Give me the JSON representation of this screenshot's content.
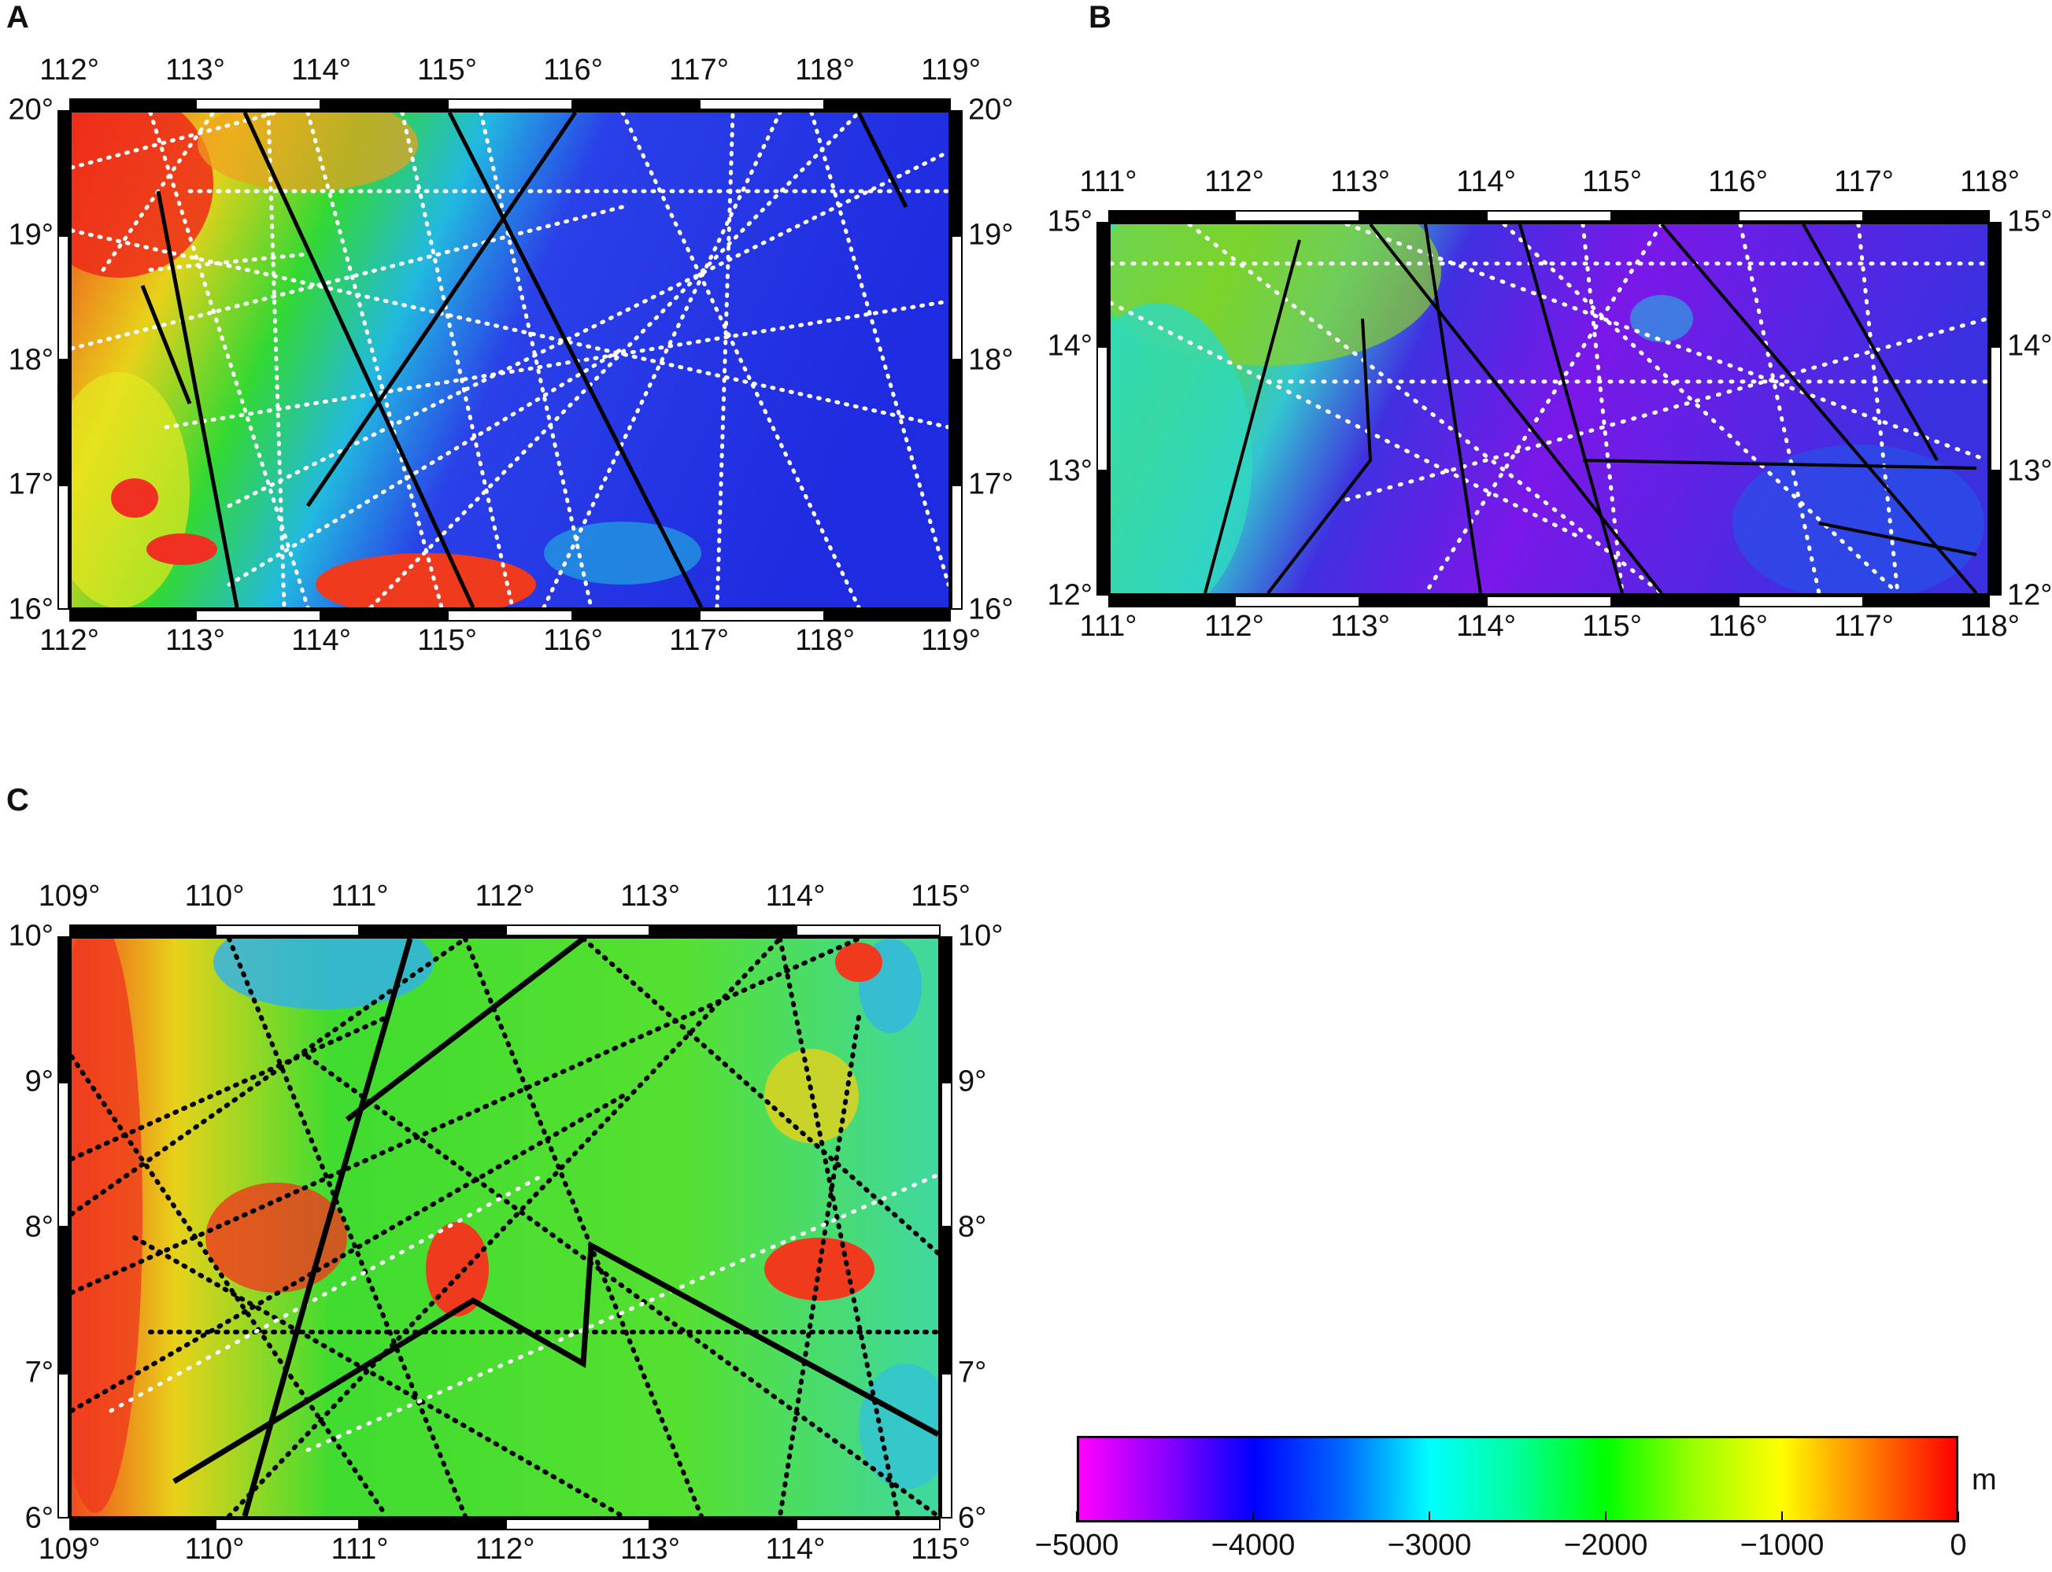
{
  "panels": [
    {
      "id": "A",
      "letter": "A",
      "lon_labels": [
        "112°",
        "113°",
        "114°",
        "115°",
        "116°",
        "117°",
        "118°",
        "119°"
      ],
      "lat_labels": [
        "20°",
        "19°",
        "18°",
        "17°",
        "16°"
      ]
    },
    {
      "id": "B",
      "letter": "B",
      "lon_labels": [
        "111°",
        "112°",
        "113°",
        "114°",
        "115°",
        "116°",
        "117°",
        "118°"
      ],
      "lat_labels": [
        "15°",
        "14°",
        "13°",
        "12°"
      ]
    },
    {
      "id": "C",
      "letter": "C",
      "lon_labels": [
        "109°",
        "110°",
        "111°",
        "112°",
        "113°",
        "114°",
        "115°"
      ],
      "lat_labels": [
        "10°",
        "9°",
        "8°",
        "7°",
        "6°"
      ]
    }
  ],
  "colorbar": {
    "unit": "m",
    "ticks": [
      "−5000",
      "−4000",
      "−3000",
      "−2000",
      "−1000",
      "0"
    ],
    "colors": [
      "#ff00ff",
      "#0000ff",
      "#00ffff",
      "#00ff00",
      "#ffff00",
      "#ff0000"
    ]
  }
}
